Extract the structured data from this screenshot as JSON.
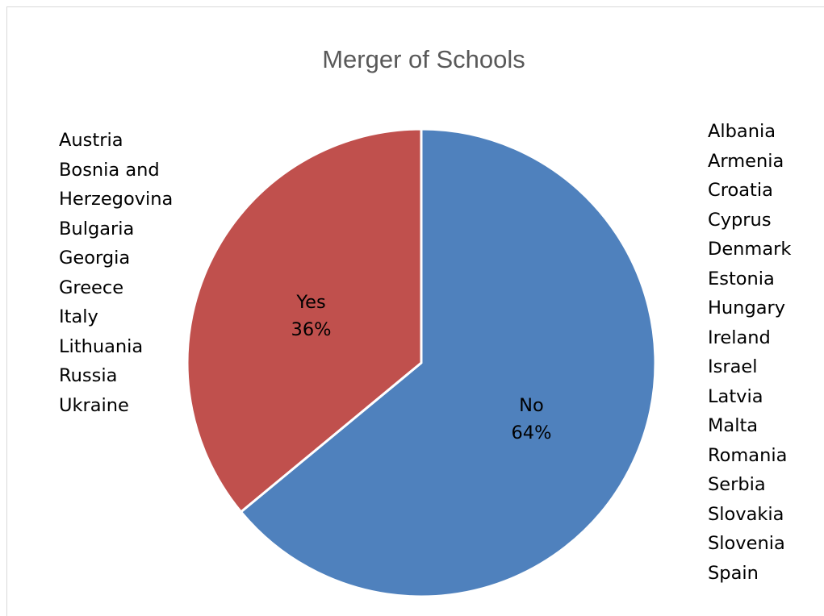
{
  "chart_data": {
    "type": "pie",
    "title": "Merger of Schools",
    "slices": [
      {
        "label": "Yes",
        "value": 36,
        "percent_label": "36%",
        "color": "#c0504d",
        "countries": [
          "Austria",
          "Bosnia and",
          "Herzegovina",
          "Bulgaria",
          "Georgia",
          "Greece",
          "Italy",
          "Lithuania",
          "Russia",
          "Ukraine"
        ]
      },
      {
        "label": "No",
        "value": 64,
        "percent_label": "64%",
        "color": "#4f81bd",
        "countries": [
          "Albania",
          "Armenia",
          "Croatia",
          "Cyprus",
          "Denmark",
          "Estonia",
          "Hungary",
          "Ireland",
          "Israel",
          "Latvia",
          "Malta",
          "Romania",
          "Serbia",
          "Slovakia",
          "Slovenia",
          "Spain"
        ]
      }
    ]
  }
}
